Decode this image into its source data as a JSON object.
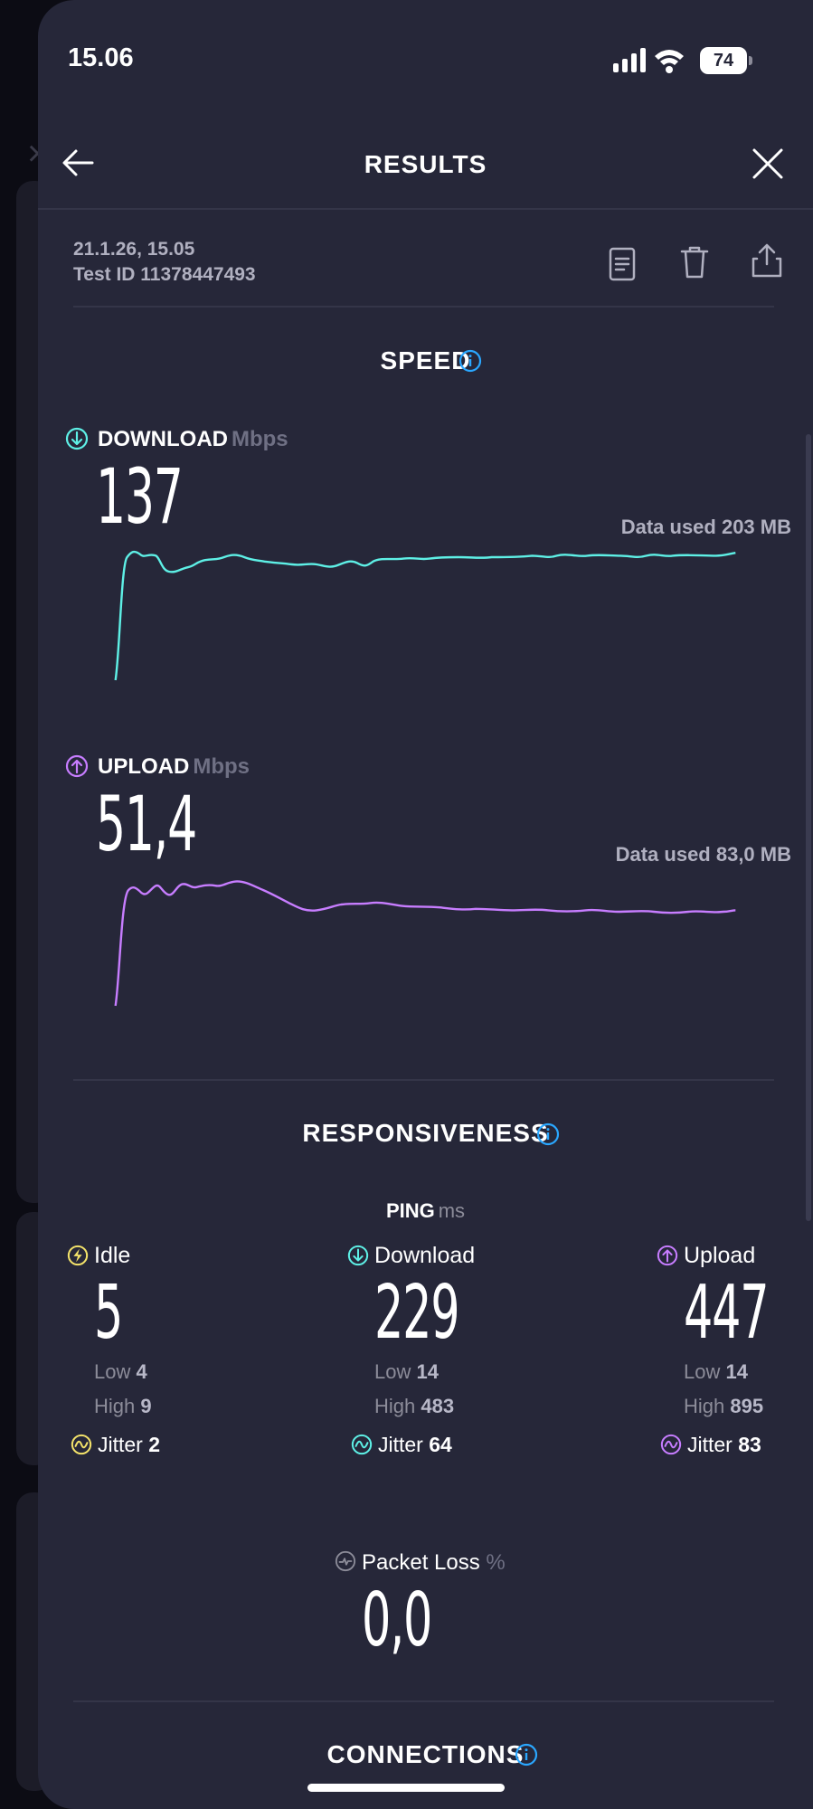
{
  "status_bar": {
    "time": "15.06",
    "battery": "74"
  },
  "nav": {
    "title": "RESULTS"
  },
  "meta": {
    "date": "21.1.26, 15.05",
    "test_id": "Test ID 11378447493"
  },
  "speed": {
    "title": "SPEED",
    "download": {
      "label": "DOWNLOAD",
      "unit": "Mbps",
      "value": "137",
      "data_used": "Data used 203 MB"
    },
    "upload": {
      "label": "UPLOAD",
      "unit": "Mbps",
      "value": "51,4",
      "data_used": "Data used 83,0 MB"
    }
  },
  "responsiveness": {
    "title": "RESPONSIVENESS",
    "ping_label": "PING",
    "ping_unit": "ms",
    "columns": [
      {
        "name": "Idle",
        "value": "5",
        "low_label": "Low",
        "low": "4",
        "high_label": "High",
        "high": "9",
        "jitter_label": "Jitter",
        "jitter": "2"
      },
      {
        "name": "Download",
        "value": "229",
        "low_label": "Low",
        "low": "14",
        "high_label": "High",
        "high": "483",
        "jitter_label": "Jitter",
        "jitter": "64"
      },
      {
        "name": "Upload",
        "value": "447",
        "low_label": "Low",
        "low": "14",
        "high_label": "High",
        "high": "895",
        "jitter_label": "Jitter",
        "jitter": "83"
      }
    ],
    "packet_loss": {
      "label": "Packet Loss",
      "unit": "%",
      "value": "0,0"
    }
  },
  "connections": {
    "title": "CONNECTIONS"
  },
  "colors": {
    "download": "#5ef0e6",
    "upload": "#c77dff",
    "idle": "#f4e36a",
    "info": "#2aa7ff",
    "sheet_bg": "#262739"
  },
  "icons": {
    "back": "arrow-left-icon",
    "close": "close-icon",
    "details": "document-icon",
    "delete": "trash-icon",
    "share": "share-icon",
    "info": "info-icon",
    "download": "arrow-down-circle-icon",
    "upload": "arrow-up-circle-icon",
    "idle": "bolt-circle-icon",
    "jitter": "wave-circle-icon",
    "packet_loss": "packet-loss-icon"
  }
}
